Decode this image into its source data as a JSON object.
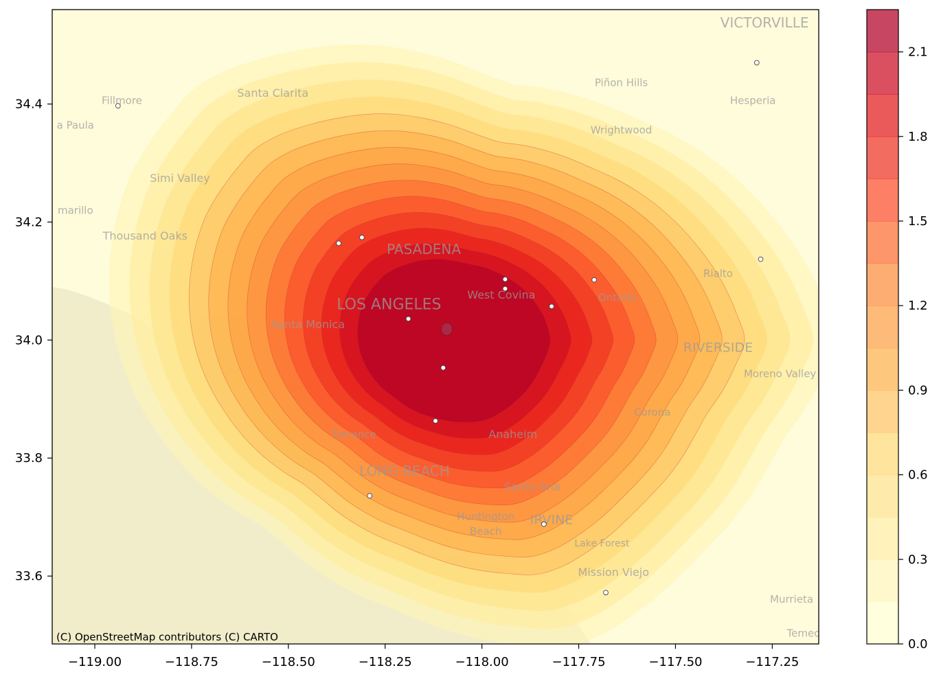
{
  "chart_data": {
    "type": "heatmap",
    "subtype": "kde-contour-over-basemap",
    "x_ticks": [
      "−119.00",
      "−118.75",
      "−118.50",
      "−118.25",
      "−118.00",
      "−117.75",
      "−117.50",
      "−117.25"
    ],
    "x_tick_values": [
      -119.0,
      -118.75,
      -118.5,
      -118.25,
      -118.0,
      -117.75,
      -117.5,
      -117.25
    ],
    "y_ticks": [
      "33.6",
      "33.8",
      "34.0",
      "34.2",
      "34.4"
    ],
    "y_tick_values": [
      33.6,
      33.8,
      34.0,
      34.2,
      34.4
    ],
    "xlim": [
      -119.11,
      -117.13
    ],
    "ylim": [
      33.485,
      34.56
    ],
    "colorbar": {
      "ticks": [
        "0.0",
        "0.3",
        "0.6",
        "0.9",
        "1.2",
        "1.5",
        "1.8",
        "2.1"
      ],
      "tick_values": [
        0.0,
        0.3,
        0.6,
        0.9,
        1.2,
        1.5,
        1.8,
        2.1
      ],
      "range": [
        0.0,
        2.25
      ],
      "levels": 15,
      "colormap": "YlOrRd",
      "colors": [
        "#fffdd0",
        "#fff5b8",
        "#ffeda0",
        "#fee38a",
        "#fed976",
        "#fec462",
        "#feb24c",
        "#fd9f44",
        "#fd8d3c",
        "#fc6d32",
        "#fc4e2a",
        "#ee3323",
        "#e31a1c",
        "#cc0c22",
        "#b10026"
      ]
    },
    "density_center": {
      "lon": -118.08,
      "lat": 34.0
    },
    "points": [
      {
        "lon": -118.94,
        "lat": 34.397
      },
      {
        "lon": -117.29,
        "lat": 34.47
      },
      {
        "lon": -118.37,
        "lat": 34.164
      },
      {
        "lon": -118.31,
        "lat": 34.174
      },
      {
        "lon": -117.94,
        "lat": 34.103
      },
      {
        "lon": -117.94,
        "lat": 34.087
      },
      {
        "lon": -117.71,
        "lat": 34.102
      },
      {
        "lon": -117.82,
        "lat": 34.057
      },
      {
        "lon": -117.28,
        "lat": 34.137
      },
      {
        "lon": -118.19,
        "lat": 34.036
      },
      {
        "lon": -118.1,
        "lat": 33.953
      },
      {
        "lon": -118.12,
        "lat": 33.863
      },
      {
        "lon": -118.29,
        "lat": 33.736
      },
      {
        "lon": -117.84,
        "lat": 33.688
      },
      {
        "lon": -117.68,
        "lat": 33.572
      }
    ]
  },
  "basemap": {
    "attribution": "(C) OpenStreetMap contributors (C) CARTO",
    "labels": [
      {
        "text": "VICTORVILLE",
        "lon": -117.27,
        "lat": 34.53,
        "size": 20
      },
      {
        "text": "Piñon Hills",
        "lon": -117.64,
        "lat": 34.43,
        "size": 15
      },
      {
        "text": "Hesperia",
        "lon": -117.3,
        "lat": 34.4,
        "size": 15
      },
      {
        "text": "Santa Clarita",
        "lon": -118.54,
        "lat": 34.412,
        "size": 16
      },
      {
        "text": "Fillmore",
        "lon": -118.93,
        "lat": 34.4,
        "size": 15
      },
      {
        "text": "a Paula",
        "lon": -119.05,
        "lat": 34.358,
        "size": 15
      },
      {
        "text": "Wrightwood",
        "lon": -117.64,
        "lat": 34.35,
        "size": 15
      },
      {
        "text": "Simi Valley",
        "lon": -118.78,
        "lat": 34.268,
        "size": 16
      },
      {
        "text": "marillo",
        "lon": -119.05,
        "lat": 34.214,
        "size": 15
      },
      {
        "text": "Thousand Oaks",
        "lon": -118.87,
        "lat": 34.17,
        "size": 16
      },
      {
        "text": "PASADENA",
        "lon": -118.15,
        "lat": 34.146,
        "size": 20
      },
      {
        "text": "Rialto",
        "lon": -117.39,
        "lat": 34.107,
        "size": 15
      },
      {
        "text": "West Covina",
        "lon": -117.95,
        "lat": 34.07,
        "size": 16
      },
      {
        "text": "Ontario",
        "lon": -117.65,
        "lat": 34.066,
        "size": 15
      },
      {
        "text": "LOS ANGELES",
        "lon": -118.24,
        "lat": 34.052,
        "size": 22
      },
      {
        "text": "Santa Monica",
        "lon": -118.45,
        "lat": 34.02,
        "size": 16
      },
      {
        "text": "RIVERSIDE",
        "lon": -117.39,
        "lat": 33.98,
        "size": 19
      },
      {
        "text": "Moreno Valley",
        "lon": -117.23,
        "lat": 33.937,
        "size": 15
      },
      {
        "text": "Corona",
        "lon": -117.56,
        "lat": 33.872,
        "size": 15
      },
      {
        "text": "Torrance",
        "lon": -118.33,
        "lat": 33.834,
        "size": 15
      },
      {
        "text": "Anaheim",
        "lon": -117.92,
        "lat": 33.834,
        "size": 16
      },
      {
        "text": "LONG BEACH",
        "lon": -118.2,
        "lat": 33.77,
        "size": 20
      },
      {
        "text": "Santa Ana",
        "lon": -117.87,
        "lat": 33.745,
        "size": 16
      },
      {
        "text": "Huntington",
        "lon": -117.99,
        "lat": 33.695,
        "size": 15
      },
      {
        "text": "Beach",
        "lon": -117.99,
        "lat": 33.67,
        "size": 15
      },
      {
        "text": "IRVINE",
        "lon": -117.82,
        "lat": 33.688,
        "size": 19
      },
      {
        "text": "Lake Forest",
        "lon": -117.69,
        "lat": 33.65,
        "size": 14
      },
      {
        "text": "Mission Viejo",
        "lon": -117.66,
        "lat": 33.6,
        "size": 16
      },
      {
        "text": "Murrieta",
        "lon": -117.2,
        "lat": 33.555,
        "size": 15
      },
      {
        "text": "Temec",
        "lon": -117.17,
        "lat": 33.497,
        "size": 15
      }
    ]
  }
}
